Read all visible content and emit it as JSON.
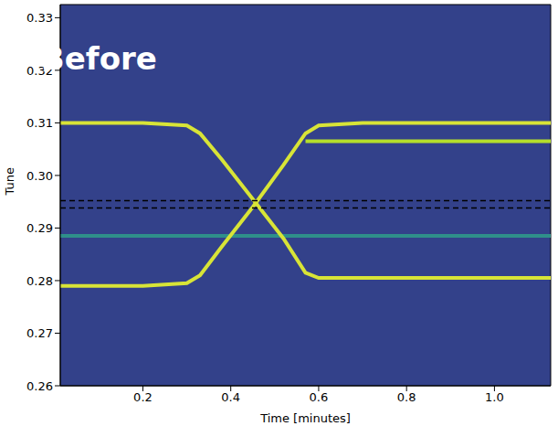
{
  "chart_data": {
    "type": "line",
    "x_label": "Time [minutes]",
    "y_label": "Tune",
    "background": "#33418a",
    "annotations": [
      {
        "text": "Before",
        "x": 0.1,
        "y": 0.3222
      }
    ],
    "x": [
      0.012,
      0.1,
      0.2,
      0.3,
      0.33,
      0.38,
      0.45,
      0.52,
      0.57,
      0.6,
      0.7,
      0.8,
      0.9,
      1.0,
      1.128
    ],
    "series": [
      {
        "color": "#2f8f8a",
        "line_style": "solid",
        "values": [
          0.2885,
          0.2885,
          0.2885,
          0.2885,
          0.2885,
          0.2885,
          0.2885,
          0.2885,
          0.2885,
          0.2885,
          0.2885,
          0.2885,
          0.2885,
          0.2885,
          0.2885
        ]
      },
      {
        "color": "#b5de2b",
        "line_style": "solid",
        "values": [
          null,
          null,
          null,
          null,
          null,
          null,
          null,
          null,
          0.3065,
          0.3065,
          0.3065,
          0.3065,
          0.3065,
          0.3065,
          0.3065
        ]
      },
      {
        "color": "#d8e437",
        "line_style": "solid",
        "values": [
          0.31,
          0.31,
          0.31,
          0.3095,
          0.308,
          0.303,
          0.2955,
          0.288,
          0.2815,
          0.2805,
          0.2805,
          0.2805,
          0.2805,
          0.2805,
          0.2805
        ]
      },
      {
        "color": "#d8e437",
        "line_style": "solid",
        "values": [
          0.279,
          0.279,
          0.279,
          0.2795,
          0.281,
          0.2865,
          0.294,
          0.302,
          0.308,
          0.3095,
          0.31,
          0.31,
          0.31,
          0.31,
          0.31
        ]
      },
      {
        "color": "#000000",
        "line_style": "dashed",
        "values": [
          0.2952,
          0.2952,
          0.2952,
          0.2952,
          0.2952,
          0.2952,
          0.2952,
          0.2952,
          0.2952,
          0.2952,
          0.2952,
          0.2952,
          0.2952,
          0.2952,
          0.2952
        ]
      },
      {
        "color": "#000000",
        "line_style": "dashed",
        "values": [
          0.2938,
          0.2938,
          0.2938,
          0.2938,
          0.2938,
          0.2938,
          0.2938,
          0.2938,
          0.2938,
          0.2938,
          0.2938,
          0.2938,
          0.2938,
          0.2938,
          0.2938
        ]
      }
    ],
    "xlim": [
      0.012,
      1.128
    ],
    "ylim": [
      0.26,
      0.3325
    ],
    "xticks": [
      0.2,
      0.4,
      0.6,
      0.8,
      {
        "value": 1,
        "label": "1.0"
      }
    ],
    "yticks": [
      0.26,
      0.27,
      0.28,
      0.29,
      {
        "value": 0.3,
        "label": "0.30"
      },
      0.31,
      0.32,
      0.33
    ],
    "grid": false
  }
}
